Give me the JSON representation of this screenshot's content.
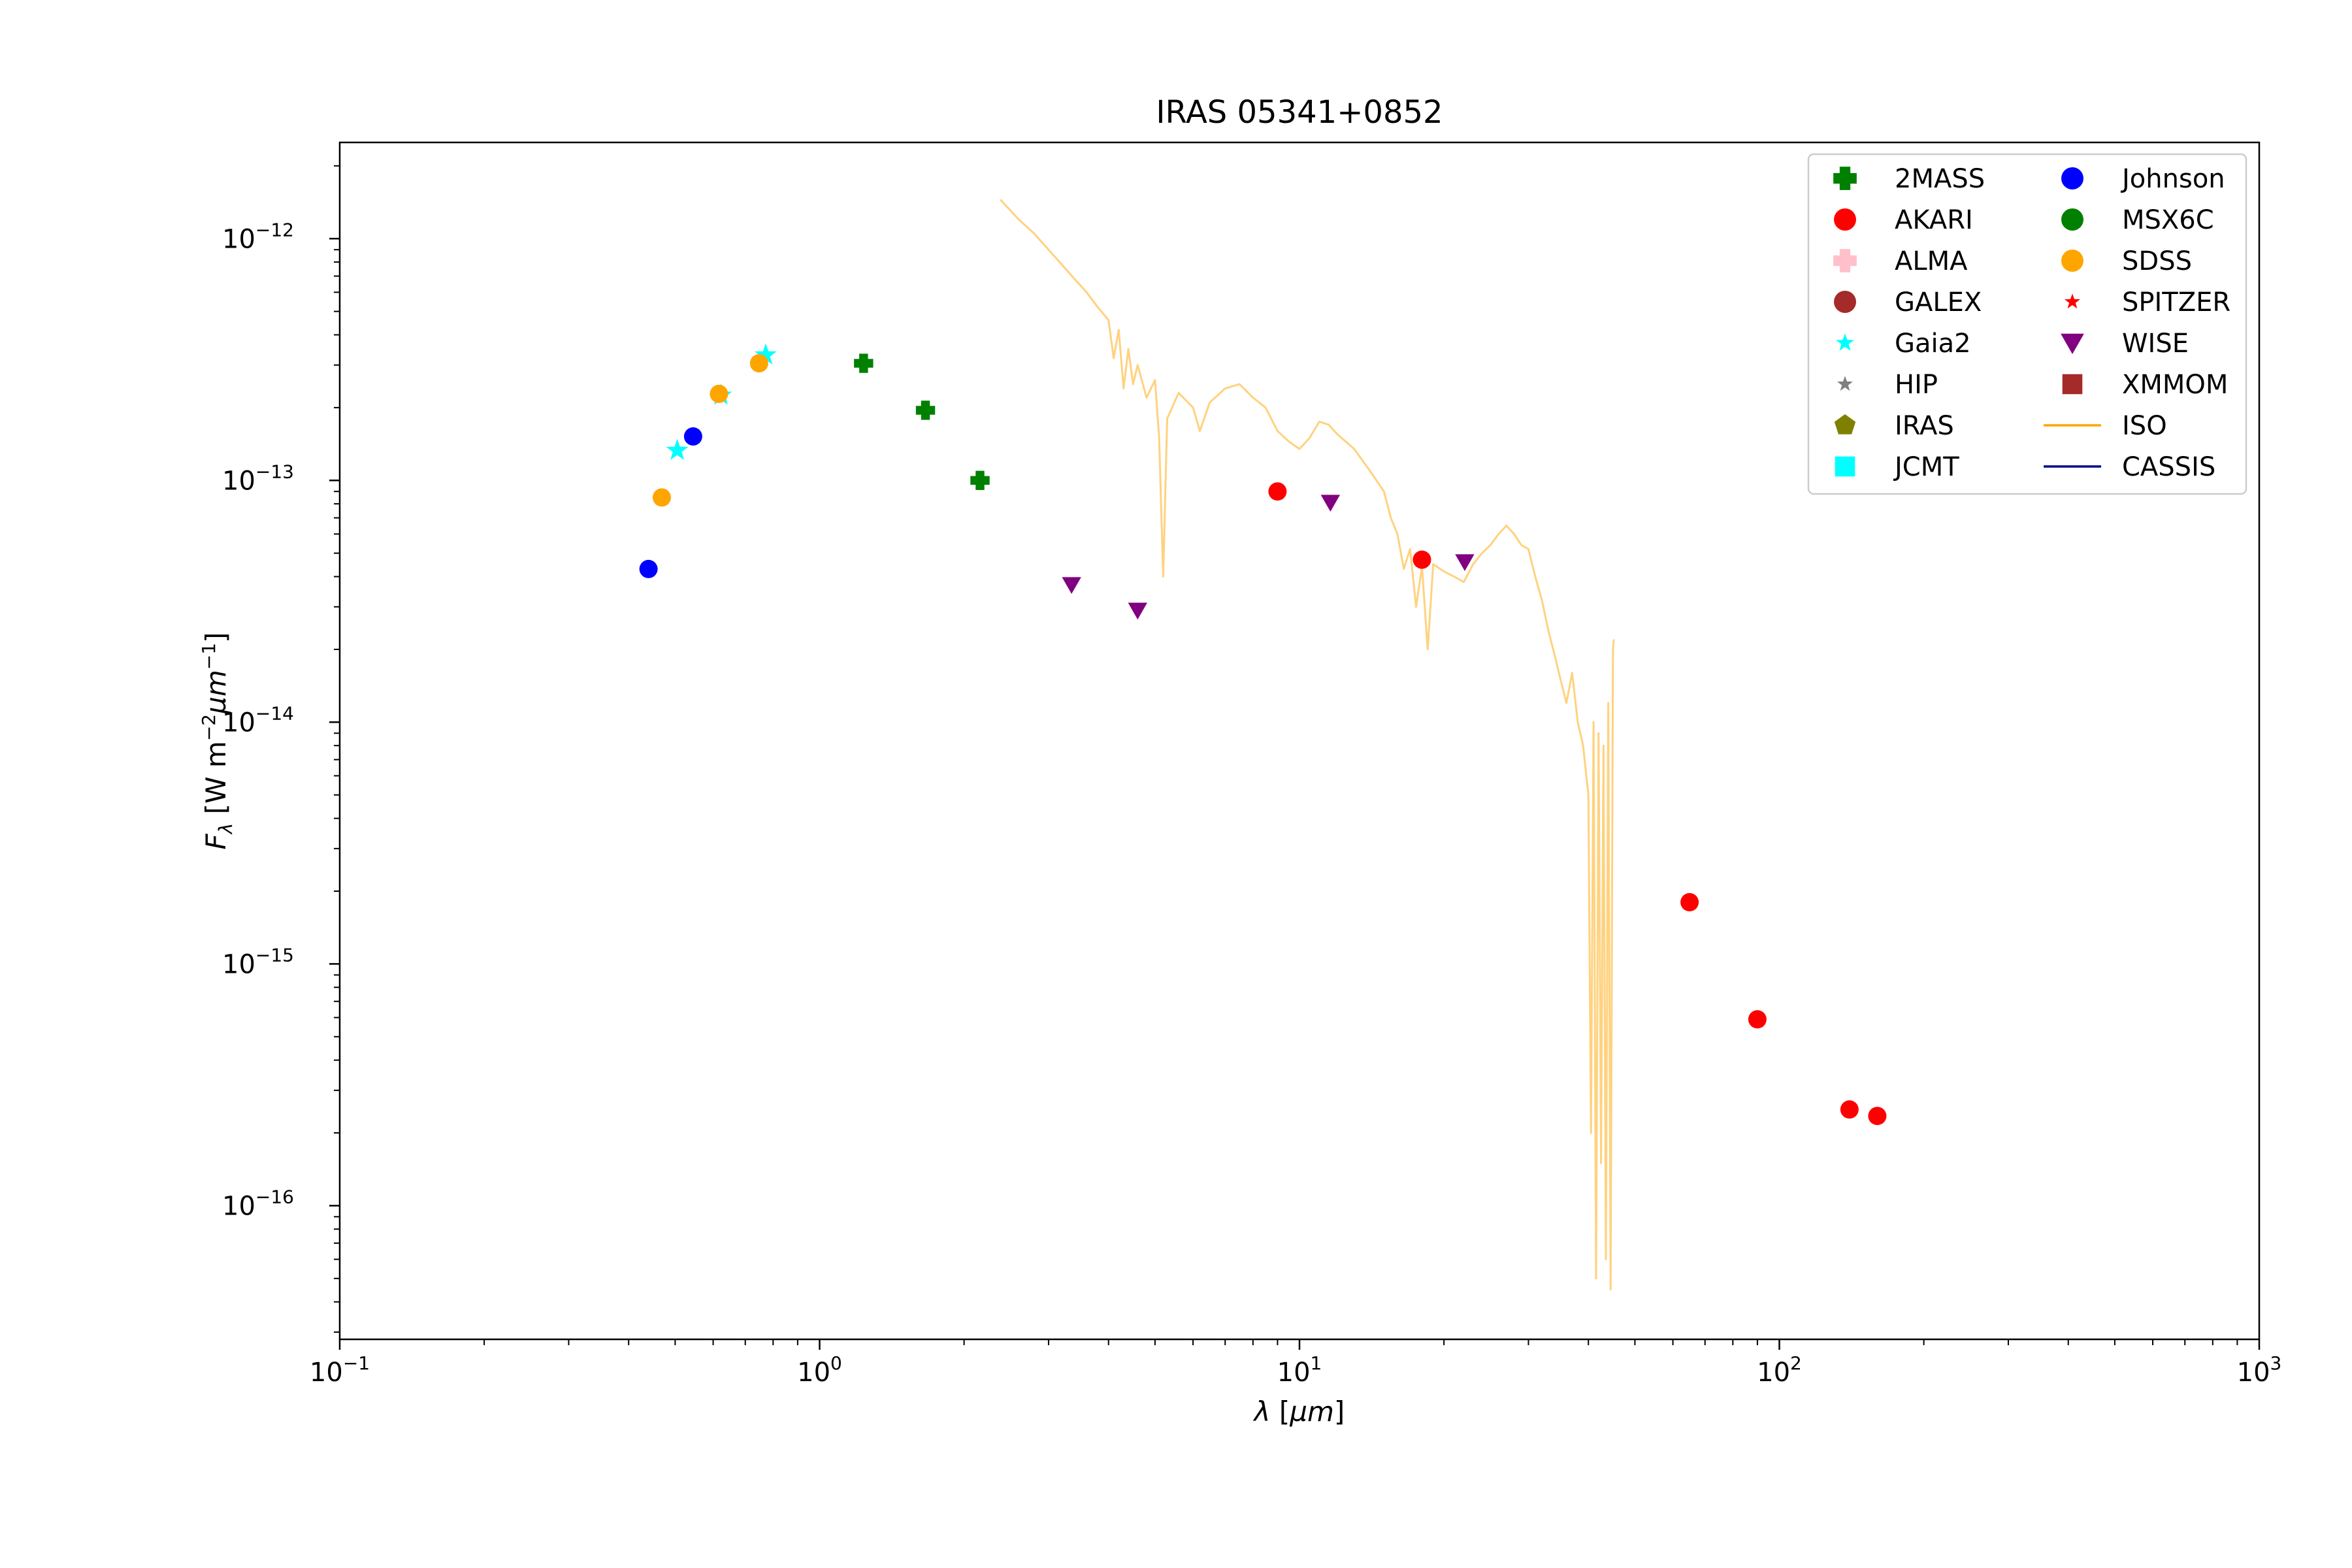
{
  "chart_data": {
    "type": "scatter",
    "title": "IRAS 05341+0852",
    "xlabel": "λ [μm]",
    "ylabel": "Fλ [W m⁻² μm⁻¹]",
    "xscale": "log",
    "yscale": "log",
    "xlim": [
      0.1,
      1000
    ],
    "ylim": [
      2.8e-17,
      2.5e-12
    ],
    "x_ticks": [
      {
        "value": 0.1,
        "base": "10",
        "exp": "−1"
      },
      {
        "value": 1,
        "base": "10",
        "exp": "0"
      },
      {
        "value": 10,
        "base": "10",
        "exp": "1"
      },
      {
        "value": 100,
        "base": "10",
        "exp": "2"
      },
      {
        "value": 1000,
        "base": "10",
        "exp": "3"
      }
    ],
    "y_ticks": [
      {
        "value": 1e-12,
        "base": "10",
        "exp": "−12"
      },
      {
        "value": 1e-13,
        "base": "10",
        "exp": "−13"
      },
      {
        "value": 1e-14,
        "base": "10",
        "exp": "−14"
      },
      {
        "value": 1e-15,
        "base": "10",
        "exp": "−15"
      },
      {
        "value": 1e-16,
        "base": "10",
        "exp": "−16"
      }
    ],
    "grid": false,
    "legend_position": "top-right",
    "legend": [
      {
        "name": "2MASS",
        "marker": "plus",
        "color": "#008000"
      },
      {
        "name": "AKARI",
        "marker": "circle",
        "color": "#ff0000"
      },
      {
        "name": "ALMA",
        "marker": "plus",
        "color": "#ffc0cb"
      },
      {
        "name": "GALEX",
        "marker": "circle",
        "color": "#a52a2a"
      },
      {
        "name": "Gaia2",
        "marker": "star",
        "color": "#00ffff"
      },
      {
        "name": "HIP",
        "marker": "star",
        "color": "#808080"
      },
      {
        "name": "IRAS",
        "marker": "pentagon",
        "color": "#808000"
      },
      {
        "name": "JCMT",
        "marker": "square",
        "color": "#00ffff"
      },
      {
        "name": "Johnson",
        "marker": "circle",
        "color": "#0000ff"
      },
      {
        "name": "MSX6C",
        "marker": "circle",
        "color": "#008000"
      },
      {
        "name": "SDSS",
        "marker": "circle",
        "color": "#ffa500"
      },
      {
        "name": "SPITZER",
        "marker": "star",
        "color": "#ff0000"
      },
      {
        "name": "WISE",
        "marker": "triangle-down",
        "color": "#800080"
      },
      {
        "name": "XMMOM",
        "marker": "square",
        "color": "#a52a2a"
      },
      {
        "name": "ISO",
        "marker": "line",
        "color": "#ffa500"
      },
      {
        "name": "CASSIS",
        "marker": "line",
        "color": "#00008b"
      }
    ],
    "series": [
      {
        "name": "2MASS",
        "marker": "plus",
        "color": "#008000",
        "points": [
          [
            1.235,
            3.05e-13
          ],
          [
            1.662,
            1.95e-13
          ],
          [
            2.159,
            1e-13
          ]
        ]
      },
      {
        "name": "AKARI",
        "marker": "circle",
        "color": "#ff0000",
        "points": [
          [
            9.0,
            9e-14
          ],
          [
            18.0,
            4.7e-14
          ],
          [
            65.0,
            1.8e-15
          ],
          [
            90.0,
            5.9e-16
          ],
          [
            140.0,
            2.5e-16
          ],
          [
            160.0,
            2.35e-16
          ]
        ]
      },
      {
        "name": "Gaia2",
        "marker": "star",
        "color": "#00ffff",
        "points": [
          [
            0.505,
            1.33e-13
          ],
          [
            0.623,
            2.25e-13
          ],
          [
            0.772,
            3.3e-13
          ]
        ]
      },
      {
        "name": "Johnson",
        "marker": "circle",
        "color": "#0000ff",
        "points": [
          [
            0.44,
            4.3e-14
          ],
          [
            0.545,
            1.52e-13
          ]
        ]
      },
      {
        "name": "SDSS",
        "marker": "circle",
        "color": "#ffa500",
        "points": [
          [
            0.469,
            8.5e-14
          ],
          [
            0.617,
            2.28e-13
          ],
          [
            0.748,
            3.05e-13
          ]
        ]
      },
      {
        "name": "WISE",
        "marker": "triangle-down",
        "color": "#800080",
        "points": [
          [
            3.35,
            3.7e-14
          ],
          [
            4.6,
            2.9e-14
          ],
          [
            11.6,
            8.1e-14
          ],
          [
            22.1,
            4.6e-14
          ]
        ]
      }
    ],
    "iso_spectrum": {
      "name": "ISO",
      "color": "#ffa500",
      "opacity": 0.5,
      "points": [
        [
          2.38,
          1.45e-12
        ],
        [
          2.6,
          1.2e-12
        ],
        [
          2.8,
          1.05e-12
        ],
        [
          3.0,
          9e-13
        ],
        [
          3.2,
          7.8e-13
        ],
        [
          3.4,
          6.8e-13
        ],
        [
          3.6,
          6e-13
        ],
        [
          3.8,
          5.2e-13
        ],
        [
          4.0,
          4.6e-13
        ],
        [
          4.1,
          3.2e-13
        ],
        [
          4.2,
          4.2e-13
        ],
        [
          4.3,
          2.4e-13
        ],
        [
          4.4,
          3.5e-13
        ],
        [
          4.5,
          2.5e-13
        ],
        [
          4.6,
          3e-13
        ],
        [
          4.8,
          2.2e-13
        ],
        [
          5.0,
          2.6e-13
        ],
        [
          5.1,
          1.5e-13
        ],
        [
          5.2,
          4e-14
        ],
        [
          5.3,
          1.8e-13
        ],
        [
          5.6,
          2.3e-13
        ],
        [
          6.0,
          2e-13
        ],
        [
          6.2,
          1.6e-13
        ],
        [
          6.5,
          2.1e-13
        ],
        [
          7.0,
          2.4e-13
        ],
        [
          7.5,
          2.5e-13
        ],
        [
          8.0,
          2.2e-13
        ],
        [
          8.5,
          2e-13
        ],
        [
          9.0,
          1.6e-13
        ],
        [
          9.5,
          1.45e-13
        ],
        [
          10.0,
          1.35e-13
        ],
        [
          10.5,
          1.5e-13
        ],
        [
          11.0,
          1.75e-13
        ],
        [
          11.5,
          1.7e-13
        ],
        [
          12.0,
          1.55e-13
        ],
        [
          13.0,
          1.35e-13
        ],
        [
          14.0,
          1.1e-13
        ],
        [
          15.0,
          9e-14
        ],
        [
          15.5,
          7e-14
        ],
        [
          16.0,
          6e-14
        ],
        [
          16.5,
          4.3e-14
        ],
        [
          17.0,
          5.2e-14
        ],
        [
          17.5,
          3e-14
        ],
        [
          18.0,
          4.4e-14
        ],
        [
          18.5,
          2e-14
        ],
        [
          19.0,
          4.5e-14
        ],
        [
          20.0,
          4.2e-14
        ],
        [
          21.0,
          4e-14
        ],
        [
          22.0,
          3.8e-14
        ],
        [
          23.0,
          4.5e-14
        ],
        [
          24.0,
          5e-14
        ],
        [
          25.0,
          5.4e-14
        ],
        [
          26.0,
          6e-14
        ],
        [
          27.0,
          6.5e-14
        ],
        [
          28.0,
          6e-14
        ],
        [
          29.0,
          5.4e-14
        ],
        [
          30.0,
          5.2e-14
        ],
        [
          31.0,
          4e-14
        ],
        [
          32.0,
          3.2e-14
        ],
        [
          33.0,
          2.4e-14
        ],
        [
          34.0,
          1.9e-14
        ],
        [
          35.0,
          1.5e-14
        ],
        [
          36.0,
          1.2e-14
        ],
        [
          37.0,
          1.6e-14
        ],
        [
          38.0,
          1e-14
        ],
        [
          39.0,
          8e-15
        ],
        [
          40.0,
          5e-15
        ],
        [
          40.5,
          2e-16
        ],
        [
          41.0,
          1e-14
        ],
        [
          41.5,
          5e-17
        ],
        [
          42.0,
          9e-15
        ],
        [
          42.5,
          1.5e-16
        ],
        [
          43.0,
          8e-15
        ],
        [
          43.5,
          6e-17
        ],
        [
          44.0,
          1.2e-14
        ],
        [
          44.5,
          4.5e-17
        ],
        [
          45.0,
          2e-14
        ],
        [
          45.2,
          2.2e-14
        ]
      ]
    }
  }
}
